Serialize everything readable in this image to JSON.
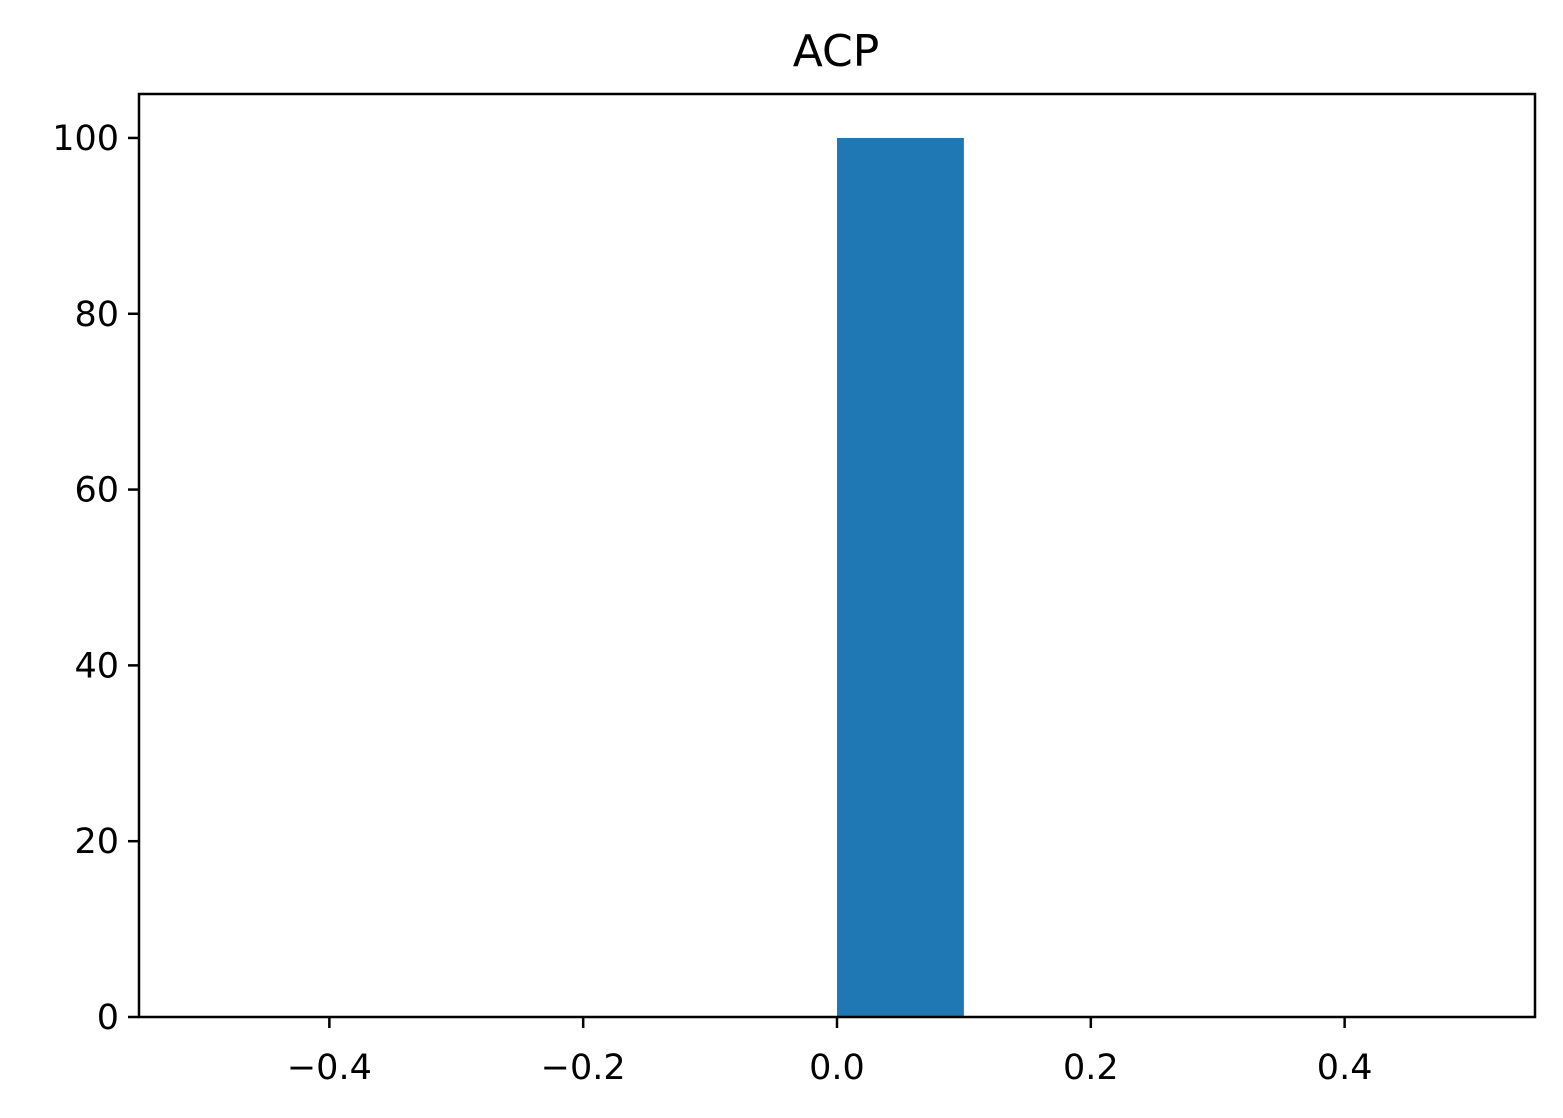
{
  "chart_data": {
    "type": "bar",
    "title": "ACP",
    "xlabel": "",
    "ylabel": "",
    "xlim": [
      -0.55,
      0.55
    ],
    "ylim": [
      0,
      105
    ],
    "bars": [
      {
        "x_start": 0.0,
        "x_end": 0.1,
        "value": 100
      }
    ],
    "x_ticks": [
      -0.4,
      -0.2,
      0.0,
      0.2,
      0.4
    ],
    "x_tick_labels": [
      "−0.4",
      "−0.2",
      "0.0",
      "0.2",
      "0.4"
    ],
    "y_ticks": [
      0,
      20,
      40,
      60,
      80,
      100
    ],
    "y_tick_labels": [
      "0",
      "20",
      "40",
      "60",
      "80",
      "100"
    ],
    "grid": false,
    "bar_color": "#1f77b4"
  }
}
